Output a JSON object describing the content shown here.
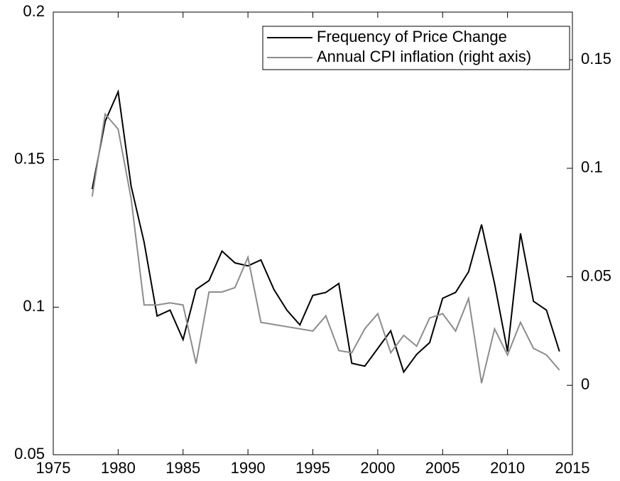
{
  "chart_data": {
    "type": "line",
    "x": [
      1978,
      1979,
      1980,
      1981,
      1982,
      1983,
      1984,
      1985,
      1986,
      1987,
      1988,
      1989,
      1990,
      1991,
      1992,
      1993,
      1994,
      1995,
      1996,
      1997,
      1998,
      1999,
      2000,
      2001,
      2002,
      2003,
      2004,
      2005,
      2006,
      2007,
      2008,
      2009,
      2010,
      2011,
      2012,
      2013,
      2014
    ],
    "series": [
      {
        "name": "Frequency of Price Change",
        "color": "#000000",
        "axis": "y",
        "values": [
          0.14,
          0.163,
          0.173,
          0.141,
          0.122,
          0.097,
          0.099,
          0.089,
          0.106,
          0.109,
          0.119,
          0.115,
          0.114,
          0.116,
          0.106,
          0.099,
          0.094,
          0.104,
          0.105,
          0.108,
          0.081,
          0.08,
          0.086,
          0.092,
          0.078,
          0.084,
          0.088,
          0.103,
          0.105,
          0.112,
          0.128,
          0.108,
          0.085,
          0.125,
          0.102,
          0.099,
          0.085
        ]
      },
      {
        "name": "Annual CPI inflation (right axis)",
        "color": "#8c8c8c",
        "axis": "y2",
        "values": [
          0.087,
          0.125,
          0.118,
          0.086,
          0.037,
          0.037,
          0.038,
          0.037,
          0.01,
          0.043,
          0.043,
          0.045,
          0.059,
          0.029,
          0.028,
          0.027,
          0.026,
          0.025,
          0.032,
          0.016,
          0.015,
          0.026,
          0.033,
          0.015,
          0.023,
          0.018,
          0.031,
          0.033,
          0.025,
          0.04,
          0.001,
          0.026,
          0.014,
          0.029,
          0.017,
          0.014,
          0.007
        ]
      }
    ],
    "xlim": [
      1975,
      2015
    ],
    "xticks": [
      1975,
      1980,
      1985,
      1990,
      1995,
      2000,
      2005,
      2010,
      2015
    ],
    "ylim": [
      0.05,
      0.2
    ],
    "yticks": [
      0.05,
      0.1,
      0.15,
      0.2
    ],
    "y2lim": [
      -0.032,
      0.172
    ],
    "y2ticks": [
      0,
      0.05,
      0.1,
      0.15
    ],
    "legend": "upper right"
  }
}
